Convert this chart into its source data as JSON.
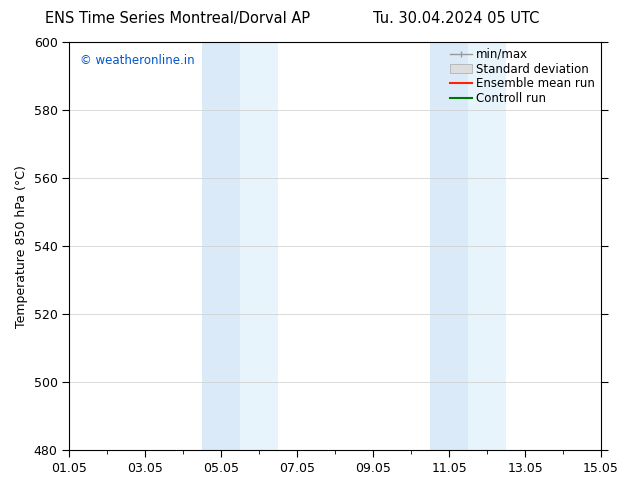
{
  "title_left": "ENS Time Series Montreal/Dorval AP",
  "title_right": "Tu. 30.04.2024 05 UTC",
  "ylabel": "Temperature 850 hPa (°C)",
  "ylim": [
    480,
    600
  ],
  "yticks": [
    480,
    500,
    520,
    540,
    560,
    580,
    600
  ],
  "x_days": 14,
  "xtick_labels": [
    "01.05",
    "03.05",
    "05.05",
    "07.05",
    "09.05",
    "11.05",
    "13.05",
    "15.05"
  ],
  "xtick_positions": [
    0,
    2,
    4,
    6,
    8,
    10,
    12,
    14
  ],
  "minor_xtick_positions": [
    0,
    1,
    2,
    3,
    4,
    5,
    6,
    7,
    8,
    9,
    10,
    11,
    12,
    13,
    14
  ],
  "shading_bands": [
    {
      "x_start": 3.5,
      "x_end": 4.5,
      "color": "#daeaf8"
    },
    {
      "x_start": 4.5,
      "x_end": 5.5,
      "color": "#e8f4fc"
    },
    {
      "x_start": 9.5,
      "x_end": 10.5,
      "color": "#daeaf8"
    },
    {
      "x_start": 10.5,
      "x_end": 11.5,
      "color": "#e8f4fc"
    }
  ],
  "legend_entries": [
    {
      "label": "min/max",
      "color": "#999999",
      "style": "minmax"
    },
    {
      "label": "Standard deviation",
      "color": "#cccccc",
      "style": "stddev"
    },
    {
      "label": "Ensemble mean run",
      "color": "#ff0000",
      "style": "line"
    },
    {
      "label": "Controll run",
      "color": "#008000",
      "style": "line"
    }
  ],
  "watermark_text": "© weatheronline.in",
  "watermark_color": "#0055cc",
  "background_color": "#ffffff",
  "plot_bg_color": "#ffffff",
  "border_color": "#000000",
  "title_fontsize": 10.5,
  "axis_label_fontsize": 9,
  "tick_fontsize": 9,
  "legend_fontsize": 8.5
}
